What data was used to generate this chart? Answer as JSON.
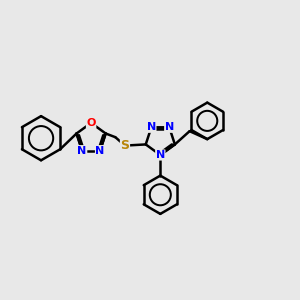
{
  "bg_color": "#e8e8e8",
  "bond_color": "#000000",
  "bond_width": 1.8,
  "N_color": "#0000ff",
  "O_color": "#ff0000",
  "S_color": "#b8860b",
  "figsize": [
    3.0,
    3.0
  ],
  "dpi": 100,
  "xlim": [
    -4.5,
    5.5
  ],
  "ylim": [
    -3.5,
    3.5
  ]
}
